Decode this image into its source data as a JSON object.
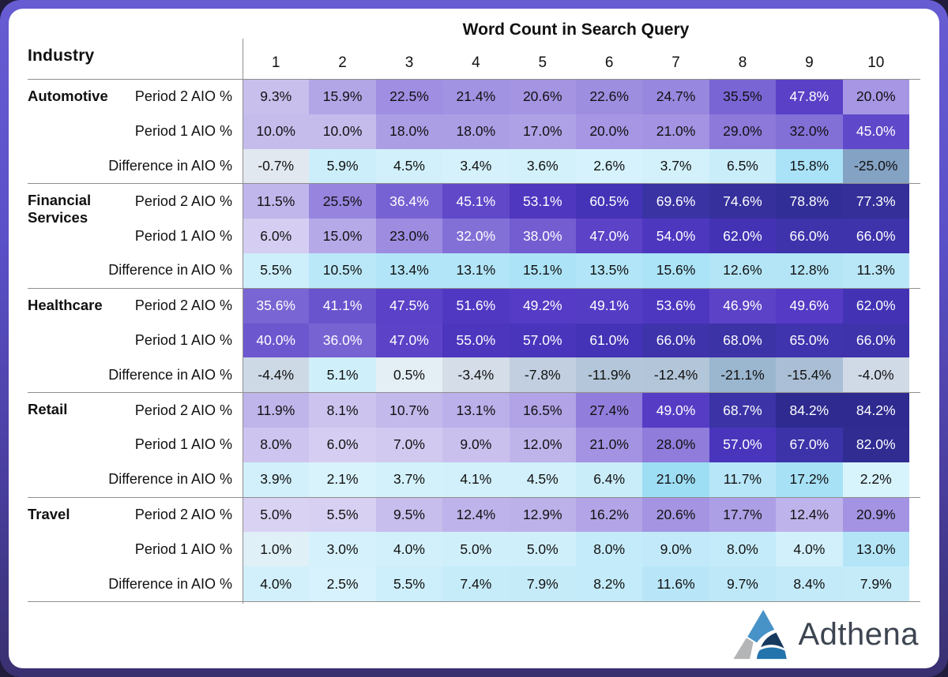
{
  "header": {
    "industry_label": "Industry",
    "title": "Word Count in Search Query"
  },
  "columns": [
    "1",
    "2",
    "3",
    "4",
    "5",
    "6",
    "7",
    "8",
    "9",
    "10"
  ],
  "chart_data": {
    "type": "heatmap",
    "title": "Word Count in Search Query",
    "x_axis_label": "Word Count in Search Query",
    "x_categories": [
      1,
      2,
      3,
      4,
      5,
      6,
      7,
      8,
      9,
      10
    ],
    "value_format": "percent_one_decimal",
    "industries": [
      {
        "name": "Automotive",
        "rows": [
          {
            "label": "Period 2 AIO %",
            "palette": "purple",
            "white_text_from": 45,
            "values": [
              9.3,
              15.9,
              22.5,
              21.4,
              20.6,
              22.6,
              24.7,
              35.5,
              47.8,
              20.0
            ]
          },
          {
            "label": "Period 1 AIO %",
            "palette": "purple",
            "white_text_from": 40,
            "values": [
              10.0,
              10.0,
              18.0,
              18.0,
              17.0,
              20.0,
              21.0,
              29.0,
              32.0,
              45.0
            ]
          },
          {
            "label": "Difference in AIO %",
            "palette": "diverging",
            "white_text_from": 999,
            "values": [
              -0.7,
              5.9,
              4.5,
              3.4,
              3.6,
              2.6,
              3.7,
              6.5,
              15.8,
              -25.0
            ]
          }
        ]
      },
      {
        "name": "Financial Services",
        "rows": [
          {
            "label": "Period 2 AIO %",
            "palette": "purple",
            "white_text_from": 36,
            "values": [
              11.5,
              25.5,
              36.4,
              45.1,
              53.1,
              60.5,
              69.6,
              74.6,
              78.8,
              77.3
            ]
          },
          {
            "label": "Period 1 AIO %",
            "palette": "purple",
            "white_text_from": 32,
            "values": [
              6.0,
              15.0,
              23.0,
              32.0,
              38.0,
              47.0,
              54.0,
              62.0,
              66.0,
              66.0
            ]
          },
          {
            "label": "Difference in AIO %",
            "palette": "diverging",
            "white_text_from": 999,
            "values": [
              5.5,
              10.5,
              13.4,
              13.1,
              15.1,
              13.5,
              15.6,
              12.6,
              12.8,
              11.3
            ]
          }
        ]
      },
      {
        "name": "Healthcare",
        "rows": [
          {
            "label": "Period 2 AIO %",
            "palette": "purple",
            "white_text_from": 0,
            "values": [
              35.6,
              41.1,
              47.5,
              51.6,
              49.2,
              49.1,
              53.6,
              46.9,
              49.6,
              62.0
            ]
          },
          {
            "label": "Period 1 AIO %",
            "palette": "purple",
            "white_text_from": 0,
            "values": [
              40.0,
              36.0,
              47.0,
              55.0,
              57.0,
              61.0,
              66.0,
              68.0,
              65.0,
              66.0
            ]
          },
          {
            "label": "Difference in AIO %",
            "palette": "diverging",
            "white_text_from": 999,
            "values": [
              -4.4,
              5.1,
              0.5,
              -3.4,
              -7.8,
              -11.9,
              -12.4,
              -21.1,
              -15.4,
              -4.0
            ]
          }
        ]
      },
      {
        "name": "Retail",
        "rows": [
          {
            "label": "Period 2 AIO %",
            "palette": "purple",
            "white_text_from": 49,
            "values": [
              11.9,
              8.1,
              10.7,
              13.1,
              16.5,
              27.4,
              49.0,
              68.7,
              84.2,
              84.2
            ]
          },
          {
            "label": "Period 1 AIO %",
            "palette": "purple",
            "white_text_from": 57,
            "values": [
              8.0,
              6.0,
              7.0,
              9.0,
              12.0,
              21.0,
              28.0,
              57.0,
              67.0,
              82.0
            ]
          },
          {
            "label": "Difference in AIO %",
            "palette": "diverging",
            "white_text_from": 999,
            "values": [
              3.9,
              2.1,
              3.7,
              4.1,
              4.5,
              6.4,
              21.0,
              11.7,
              17.2,
              2.2
            ]
          }
        ]
      },
      {
        "name": "Travel",
        "rows": [
          {
            "label": "Period 2 AIO %",
            "palette": "purple",
            "white_text_from": 999,
            "values": [
              5.0,
              5.5,
              9.5,
              12.4,
              12.9,
              16.2,
              20.6,
              17.7,
              12.4,
              20.9
            ]
          },
          {
            "label": "Period 1 AIO %",
            "palette": "cyan",
            "white_text_from": 999,
            "values": [
              1.0,
              3.0,
              4.0,
              5.0,
              5.0,
              8.0,
              9.0,
              8.0,
              4.0,
              13.0
            ]
          },
          {
            "label": "Difference in AIO %",
            "palette": "diverging",
            "white_text_from": 999,
            "values": [
              4.0,
              2.5,
              5.5,
              7.4,
              7.9,
              8.2,
              11.6,
              9.7,
              8.4,
              7.9
            ]
          }
        ]
      }
    ]
  },
  "colors": {
    "purple_stops": [
      [
        0,
        "#ece8fa"
      ],
      [
        10,
        "#c5bcec"
      ],
      [
        20,
        "#a696e3"
      ],
      [
        30,
        "#8976d9"
      ],
      [
        40,
        "#6d57cf"
      ],
      [
        50,
        "#5339c4"
      ],
      [
        60,
        "#4533b8"
      ],
      [
        70,
        "#3a33a3"
      ],
      [
        85,
        "#2d2a8e"
      ]
    ],
    "cyan_stops": [
      [
        0,
        "#e6ecf2"
      ],
      [
        2,
        "#d8f3fc"
      ],
      [
        5,
        "#cfeffb"
      ],
      [
        10,
        "#bde8f8"
      ],
      [
        15,
        "#ace3f7"
      ],
      [
        21,
        "#9edef5"
      ],
      [
        30,
        "#8fd8f3"
      ]
    ],
    "slate_stops": [
      [
        -25,
        "#84a2c4"
      ],
      [
        -21,
        "#9cb6cf"
      ],
      [
        -15,
        "#abc0d5"
      ],
      [
        -10,
        "#b9cadc"
      ],
      [
        -5,
        "#cbd6e4"
      ],
      [
        0,
        "#e6ebf1"
      ]
    ],
    "frame_top": "#675cd2",
    "frame_bottom": "#393070",
    "grid_line": "#8f8f8f",
    "white_text": "#ffffff",
    "black_text": "#111111"
  },
  "logo": {
    "text": "Adthena",
    "text_color": "#3d4551",
    "triangle": {
      "light_blue": "#4793c8",
      "navy": "#16395e",
      "medium_blue": "#2373ad",
      "gray": "#b3b5b7"
    }
  }
}
